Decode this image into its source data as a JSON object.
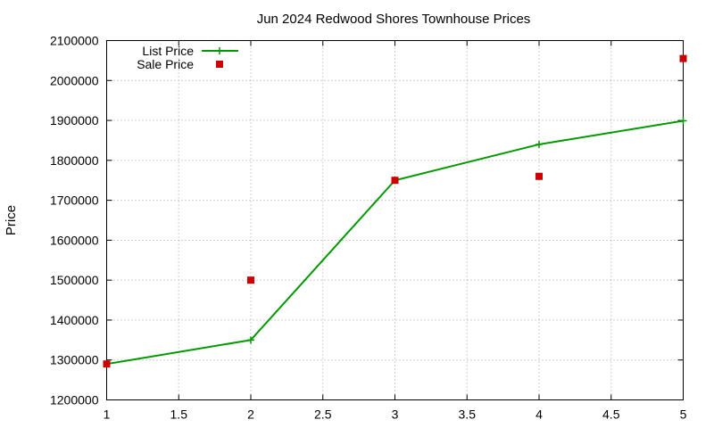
{
  "chart_data": {
    "type": "line",
    "title": "Jun 2024 Redwood Shores Townhouse Prices",
    "xlabel": "",
    "ylabel": "Price",
    "xlim": [
      1,
      5
    ],
    "ylim": [
      1200000,
      2100000
    ],
    "x_ticks": [
      "1",
      "1.5",
      "2",
      "2.5",
      "3",
      "3.5",
      "4",
      "4.5",
      "5"
    ],
    "y_ticks": [
      "1200000",
      "1300000",
      "1400000",
      "1500000",
      "1600000",
      "1700000",
      "1800000",
      "1900000",
      "2000000",
      "2100000"
    ],
    "grid": true,
    "legend_position": "top-left",
    "series": [
      {
        "name": "List Price",
        "style": "line-with-plus-markers",
        "color": "#009900",
        "points": [
          [
            1,
            1290000
          ],
          [
            2,
            1350000
          ],
          [
            3,
            1750000
          ],
          [
            4,
            1840000
          ],
          [
            5,
            1899000
          ]
        ]
      },
      {
        "name": "Sale Price",
        "style": "square-markers",
        "color": "#cc0000",
        "points": [
          [
            1,
            1290000
          ],
          [
            2,
            1500000
          ],
          [
            3,
            1750000
          ],
          [
            4,
            1760000
          ],
          [
            5,
            2055000
          ]
        ]
      }
    ]
  }
}
